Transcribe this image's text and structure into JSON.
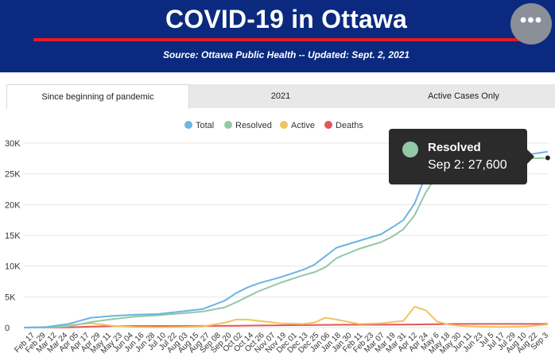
{
  "header": {
    "title": "COVID-19 in Ottawa",
    "subtitle": "Source:  Ottawa Public Health -- Updated:  Sept. 2, 2021",
    "menu_label": "•••",
    "bg_color": "#0b2a7f",
    "rule_color": "#e31b23"
  },
  "tabs": [
    {
      "label": "Since beginning of pandemic",
      "active": true
    },
    {
      "label": "2021",
      "active": false
    },
    {
      "label": "Active Cases Only",
      "active": false
    }
  ],
  "tooltip": {
    "series": "Resolved",
    "text": "Sep 2: 27,600",
    "color": "#93c8a6"
  },
  "chart_data": {
    "type": "line",
    "legend_position": "top",
    "grid": true,
    "ylim": [
      0,
      30000
    ],
    "y_ticks": [
      0,
      5000,
      10000,
      15000,
      20000,
      25000,
      30000
    ],
    "y_tick_labels": [
      "0",
      "5K",
      "10K",
      "15K",
      "20K",
      "25K",
      "30K"
    ],
    "x_tick_labels": [
      "Feb 17",
      "Feb 29",
      "Mar 12",
      "Mar 24",
      "Apr 05",
      "Apr 17",
      "Apr 29",
      "May 11",
      "May 23",
      "Jun 04",
      "Jun 16",
      "Jun 28",
      "Jul 10",
      "Jul 22",
      "Aug 03",
      "Aug 15",
      "Aug 27",
      "Sep 08",
      "Sep 20",
      "Oct 02",
      "Oct 14",
      "Oct 26",
      "Nov 07",
      "Nov 19",
      "Dec 01",
      "Dec 13",
      "Dec 25",
      "Jan 06",
      "Jan 18",
      "Jan 30",
      "Feb 11",
      "Feb 23",
      "Mar 07",
      "Mar 19",
      "Mar 31",
      "Apr 12",
      "Apr 24",
      "May 6",
      "May 18",
      "May 30",
      "Jun 11",
      "Jun 23",
      "Jul 5",
      "Jul 17",
      "Jul 29",
      "Aug 10",
      "Aug 22",
      "Sep 3"
    ],
    "series": [
      {
        "name": "Total",
        "color": "#6cb4e4",
        "x": [
          "2020-02-17",
          "2020-03-12",
          "2020-04-05",
          "2020-04-29",
          "2020-05-23",
          "2020-06-16",
          "2020-07-10",
          "2020-08-03",
          "2020-08-27",
          "2020-09-20",
          "2020-10-02",
          "2020-10-14",
          "2020-10-26",
          "2020-11-19",
          "2020-12-13",
          "2020-12-25",
          "2021-01-06",
          "2021-01-18",
          "2021-02-11",
          "2021-03-07",
          "2021-03-19",
          "2021-03-31",
          "2021-04-12",
          "2021-04-24",
          "2021-05-06",
          "2021-05-18",
          "2021-05-30",
          "2021-06-23",
          "2021-07-17",
          "2021-08-10",
          "2021-09-02"
        ],
        "values": [
          0,
          100,
          600,
          1600,
          1900,
          2100,
          2200,
          2600,
          3000,
          4400,
          5600,
          6500,
          7200,
          8200,
          9400,
          10200,
          11600,
          13000,
          14100,
          15200,
          16300,
          17500,
          20200,
          24800,
          26000,
          27000,
          27500,
          27800,
          27900,
          28100,
          28600
        ]
      },
      {
        "name": "Resolved",
        "color": "#93c8a6",
        "x": [
          "2020-02-17",
          "2020-03-12",
          "2020-04-05",
          "2020-04-29",
          "2020-05-23",
          "2020-06-16",
          "2020-07-10",
          "2020-08-03",
          "2020-08-27",
          "2020-09-20",
          "2020-10-02",
          "2020-10-14",
          "2020-10-26",
          "2020-11-19",
          "2020-12-13",
          "2020-12-25",
          "2021-01-06",
          "2021-01-18",
          "2021-02-11",
          "2021-03-07",
          "2021-03-19",
          "2021-03-31",
          "2021-04-12",
          "2021-04-24",
          "2021-05-06",
          "2021-05-18",
          "2021-05-30",
          "2021-06-23",
          "2021-07-17",
          "2021-08-10",
          "2021-09-02"
        ],
        "values": [
          0,
          0,
          200,
          900,
          1400,
          1800,
          2000,
          2300,
          2600,
          3300,
          4100,
          5000,
          5900,
          7300,
          8500,
          9000,
          9800,
          11300,
          12800,
          13900,
          14800,
          16000,
          18300,
          22000,
          24800,
          26200,
          26900,
          27200,
          27400,
          27500,
          27600
        ]
      },
      {
        "name": "Active",
        "color": "#f2c35f",
        "x": [
          "2020-02-17",
          "2020-03-12",
          "2020-04-05",
          "2020-04-29",
          "2020-05-23",
          "2020-06-16",
          "2020-07-10",
          "2020-08-03",
          "2020-08-27",
          "2020-09-20",
          "2020-10-02",
          "2020-10-14",
          "2020-10-26",
          "2020-11-19",
          "2020-12-13",
          "2020-12-25",
          "2021-01-06",
          "2021-01-18",
          "2021-02-11",
          "2021-03-07",
          "2021-03-19",
          "2021-03-31",
          "2021-04-12",
          "2021-04-24",
          "2021-05-06",
          "2021-05-18",
          "2021-05-30",
          "2021-06-23",
          "2021-07-17",
          "2021-08-10",
          "2021-09-02"
        ],
        "values": [
          0,
          100,
          400,
          700,
          300,
          100,
          50,
          100,
          200,
          800,
          1300,
          1300,
          1100,
          700,
          600,
          800,
          1600,
          1300,
          600,
          700,
          900,
          1100,
          3400,
          2800,
          1000,
          500,
          300,
          150,
          100,
          200,
          500
        ]
      },
      {
        "name": "Deaths",
        "color": "#e15759",
        "x": [
          "2020-02-17",
          "2020-03-12",
          "2020-04-05",
          "2020-04-29",
          "2020-05-23",
          "2020-06-16",
          "2020-07-10",
          "2020-08-03",
          "2020-08-27",
          "2020-09-20",
          "2020-10-02",
          "2020-10-14",
          "2020-10-26",
          "2020-11-19",
          "2020-12-13",
          "2020-12-25",
          "2021-01-06",
          "2021-01-18",
          "2021-02-11",
          "2021-03-07",
          "2021-03-19",
          "2021-03-31",
          "2021-04-12",
          "2021-04-24",
          "2021-05-06",
          "2021-05-18",
          "2021-05-30",
          "2021-06-23",
          "2021-07-17",
          "2021-08-10",
          "2021-09-02"
        ],
        "values": [
          0,
          0,
          20,
          150,
          240,
          260,
          265,
          265,
          270,
          280,
          300,
          320,
          340,
          370,
          400,
          420,
          440,
          450,
          460,
          470,
          480,
          490,
          510,
          530,
          560,
          580,
          590,
          595,
          596,
          597,
          598
        ]
      }
    ]
  }
}
